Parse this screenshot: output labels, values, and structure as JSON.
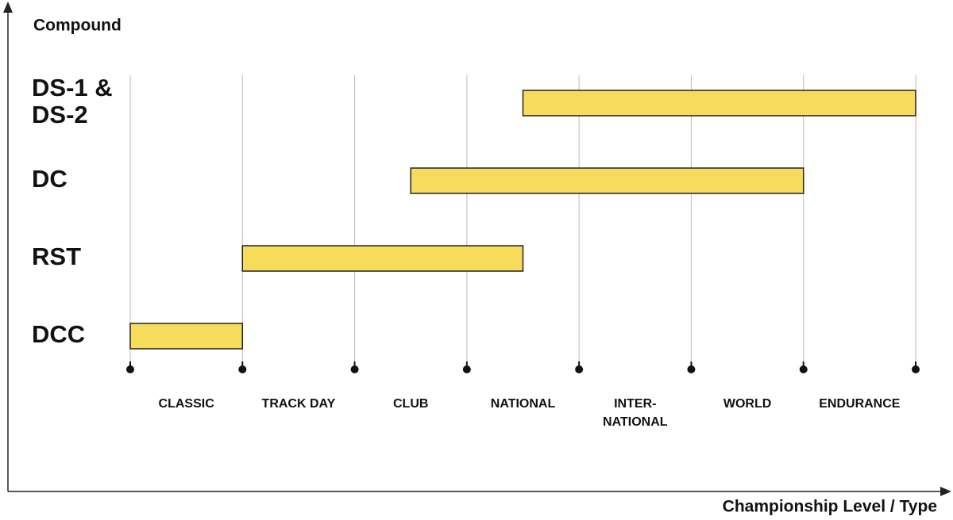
{
  "chart_data": {
    "type": "range-bar",
    "y_label": "Compound",
    "x_label": "Championship Level / Type",
    "categories": [
      [
        "CLASSIC"
      ],
      [
        "TRACK DAY"
      ],
      [
        "CLUB"
      ],
      [
        "NATIONAL"
      ],
      [
        "INTER-",
        "NATIONAL"
      ],
      [
        "WORLD"
      ],
      [
        "ENDURANCE"
      ]
    ],
    "rows": [
      {
        "label": [
          "DS-1 &",
          "DS-2"
        ],
        "start": 3.5,
        "end": 7
      },
      {
        "label": [
          "DC"
        ],
        "start": 2.5,
        "end": 6
      },
      {
        "label": [
          "RST"
        ],
        "start": 1,
        "end": 3.5
      },
      {
        "label": [
          "DCC"
        ],
        "start": 0,
        "end": 1
      }
    ],
    "color": "#f7dc5c",
    "xlim": [
      0,
      7
    ],
    "xticks": [
      0,
      1,
      2,
      3,
      4,
      5,
      6,
      7
    ],
    "grid": true
  }
}
